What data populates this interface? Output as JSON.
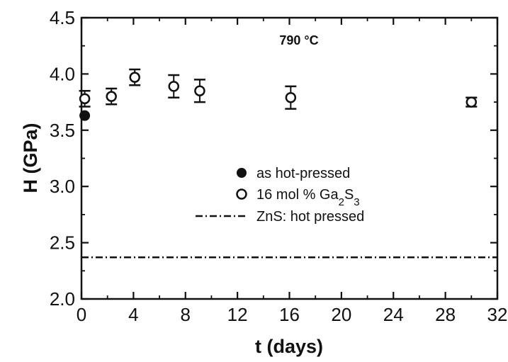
{
  "chart_data": {
    "type": "scatter",
    "title": "",
    "annotation": "790 °C",
    "xlabel": "t (days)",
    "ylabel": "H (GPa)",
    "xlim": [
      0,
      32
    ],
    "ylim": [
      2.0,
      4.5
    ],
    "x_ticks": [
      0,
      4,
      8,
      12,
      16,
      20,
      24,
      28,
      32
    ],
    "y_ticks": [
      2.0,
      2.5,
      3.0,
      3.5,
      4.0,
      4.5
    ],
    "x_tick_labels": [
      "0",
      "4",
      "8",
      "12",
      "16",
      "20",
      "24",
      "28",
      "32"
    ],
    "y_tick_labels": [
      "2.0",
      "2.5",
      "3.0",
      "3.5",
      "4.0",
      "4.5"
    ],
    "grid": false,
    "legend_position": "center-right",
    "series": [
      {
        "name": "as hot-pressed",
        "marker": "filled-circle",
        "points": [
          {
            "x": 0.25,
            "y": 3.63
          }
        ]
      },
      {
        "name": "16 mol % Ga2S3",
        "marker": "open-circle",
        "points": [
          {
            "x": 0.25,
            "y": 3.78,
            "err": 0.07
          },
          {
            "x": 2.3,
            "y": 3.8,
            "err": 0.07
          },
          {
            "x": 4.1,
            "y": 3.97,
            "err": 0.07
          },
          {
            "x": 7.1,
            "y": 3.89,
            "err": 0.1
          },
          {
            "x": 9.1,
            "y": 3.85,
            "err": 0.1
          },
          {
            "x": 16.1,
            "y": 3.79,
            "err": 0.1
          },
          {
            "x": 30.0,
            "y": 3.75,
            "err": 0.04
          }
        ]
      }
    ],
    "reference_lines": [
      {
        "name": "ZnS: hot pressed",
        "y": 2.37,
        "style": "dash-dot"
      }
    ]
  }
}
